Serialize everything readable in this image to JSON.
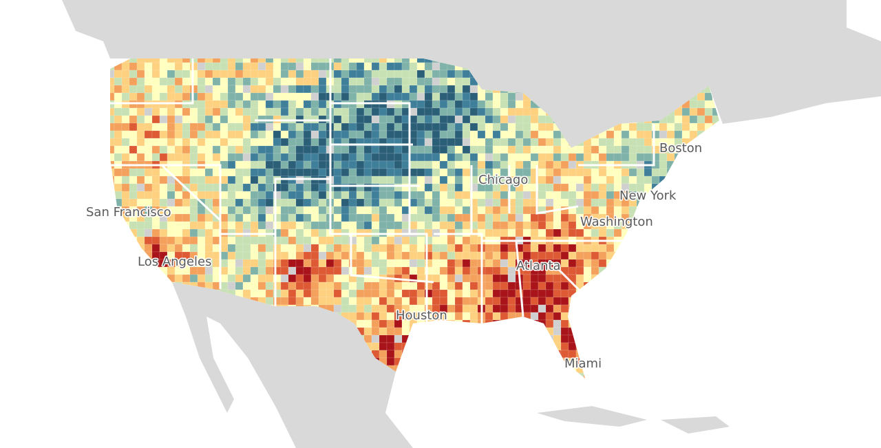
{
  "map": {
    "labels": [
      "San Francisco",
      "Los Angeles",
      "Chicago",
      "Boston",
      "New York",
      "Washington",
      "Atlanta",
      "Houston",
      "Miami"
    ]
  }
}
